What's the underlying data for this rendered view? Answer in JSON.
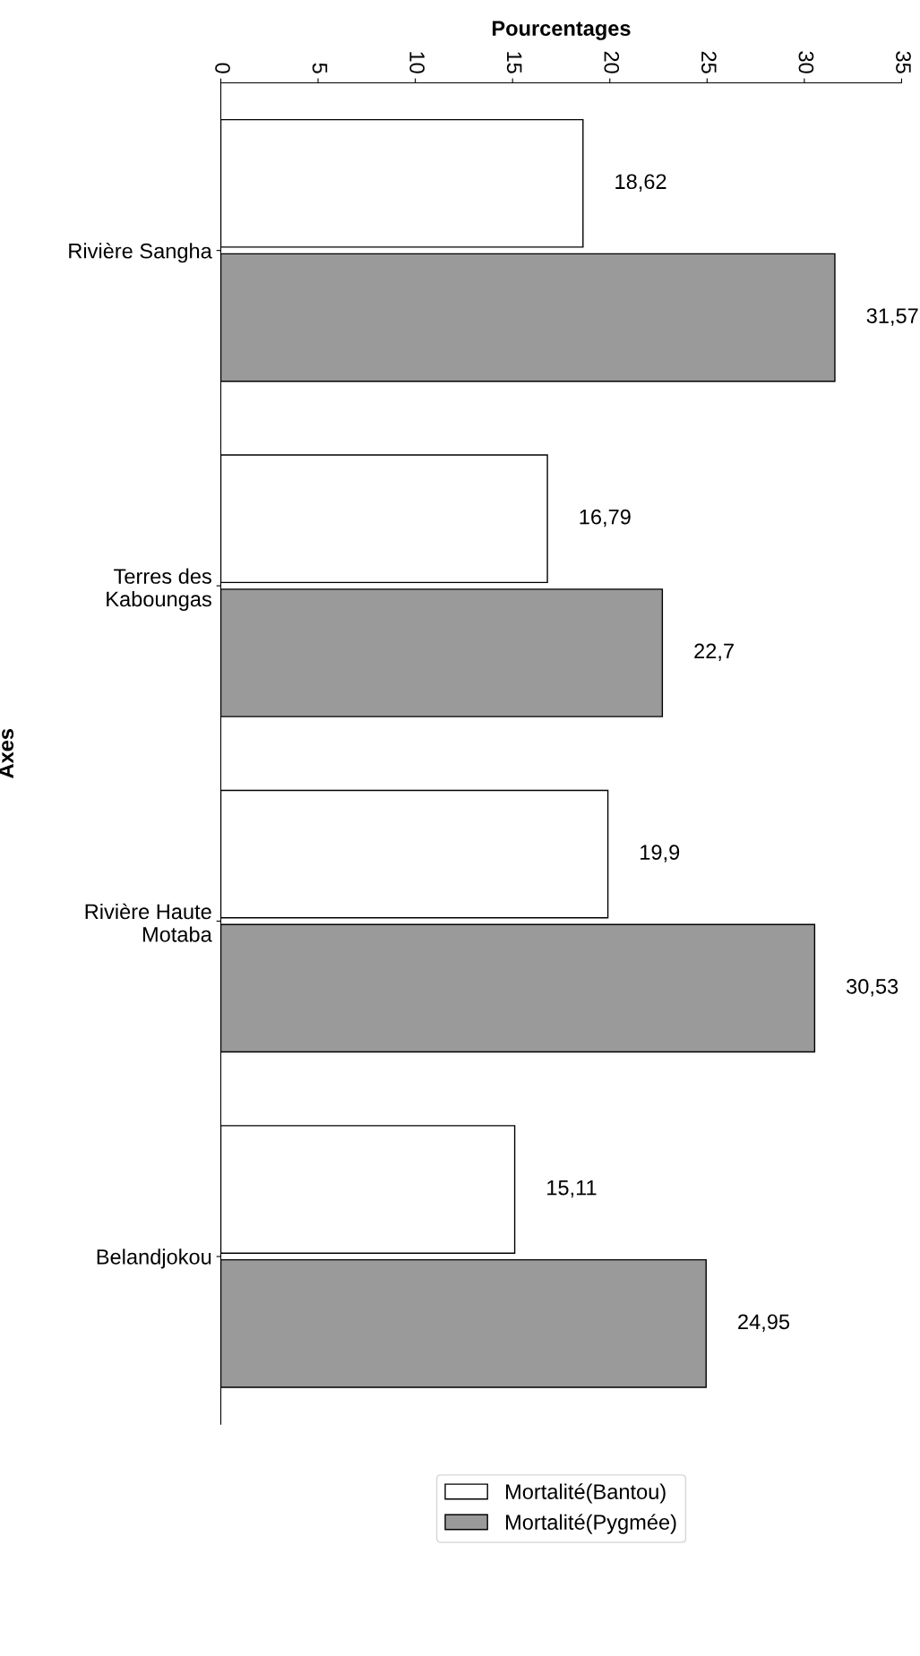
{
  "chart_data": {
    "type": "bar",
    "orientation": "horizontal",
    "xlabel": "Pourcentages",
    "ylabel": "Axes",
    "categories": [
      "Rivière Sangha",
      "Terres des\nKaboungas",
      "Rivière Haute\nMotaba",
      "Belandjokou"
    ],
    "series": [
      {
        "name": "Mortalité(Bantou)",
        "color": "#ffffff",
        "values": [
          18.62,
          16.79,
          19.9,
          15.11
        ],
        "value_labels": [
          "18,62",
          "16,79",
          "19,9",
          "15,11"
        ]
      },
      {
        "name": "Mortalité(Pygmée)",
        "color": "#9a9a9a",
        "values": [
          31.57,
          22.7,
          30.53,
          24.95
        ],
        "value_labels": [
          "31,57",
          "22,7",
          "30,53",
          "24,95"
        ]
      }
    ],
    "xlim": [
      0,
      35
    ],
    "xticks": [
      0,
      5,
      10,
      15,
      20,
      25,
      30,
      35
    ],
    "grid": false,
    "legend": "bottom"
  }
}
